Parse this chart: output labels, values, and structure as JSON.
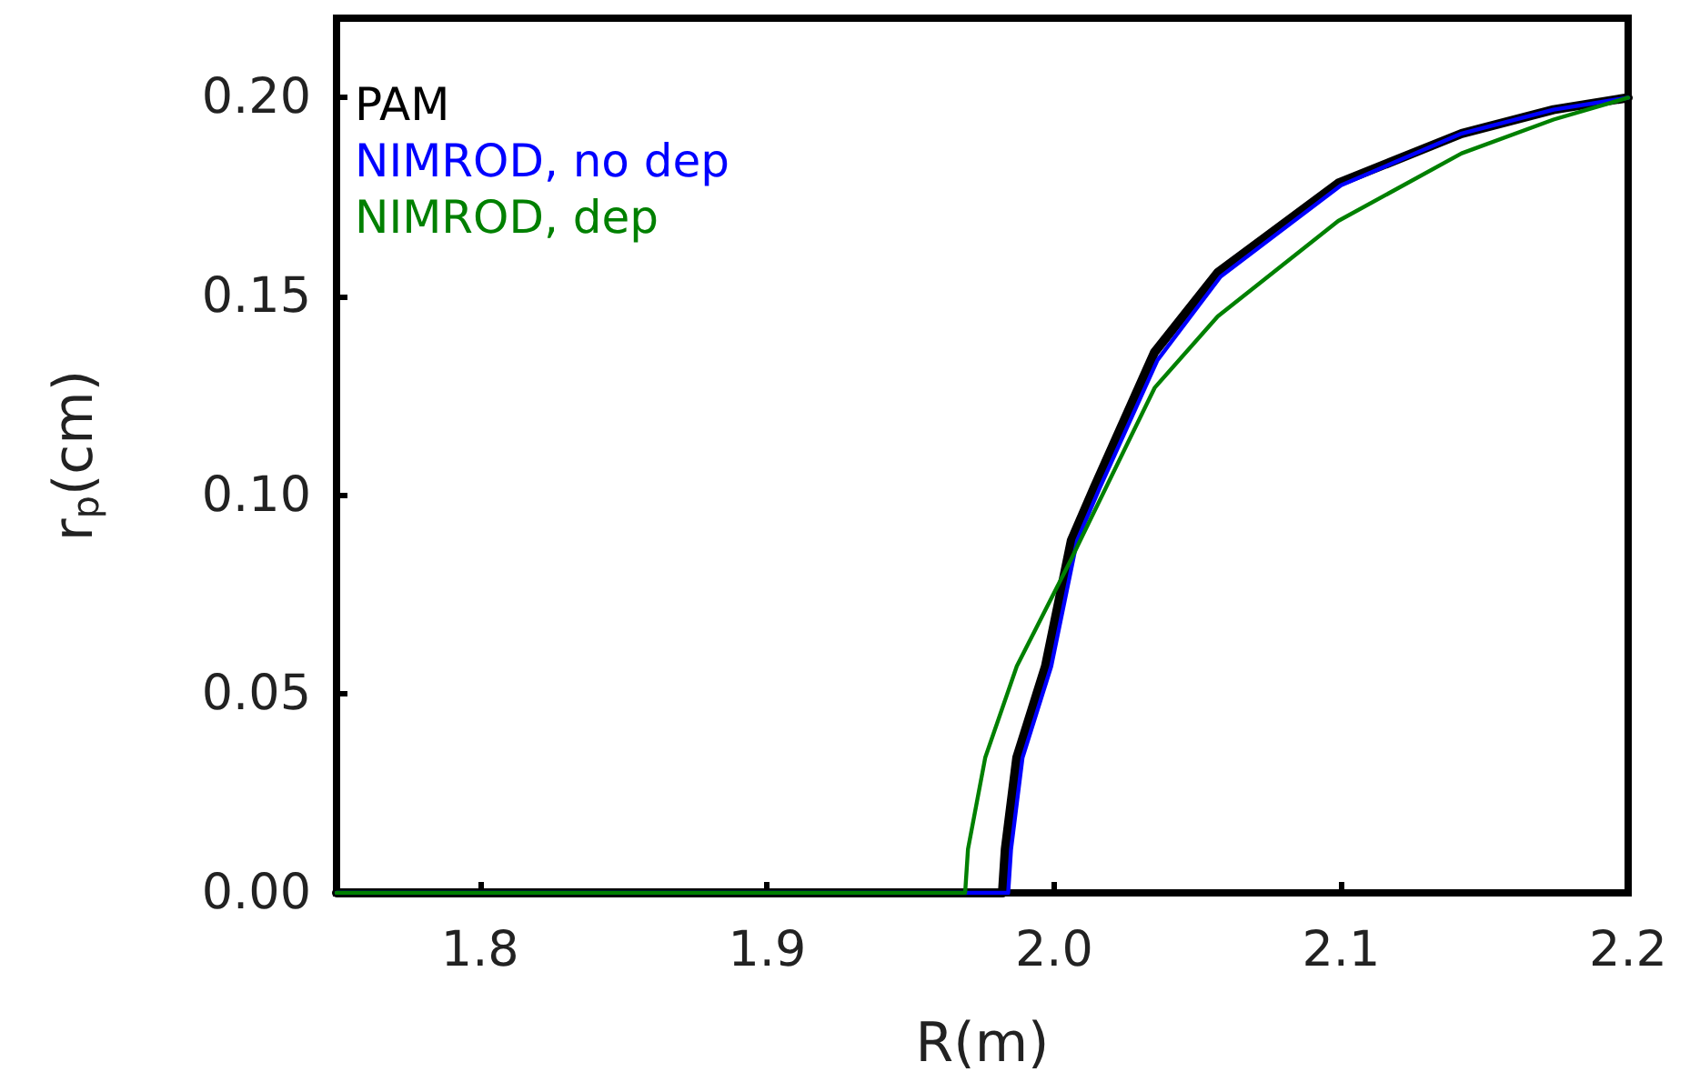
{
  "chart_data": {
    "type": "line",
    "xlabel": "R(m)",
    "ylabel": "r$_{p}$(cm)",
    "xlim": [
      1.75,
      2.2
    ],
    "ylim": [
      0,
      0.22
    ],
    "xticks": [
      1.8,
      1.9,
      {
        "value": 2,
        "label": "2.0"
      },
      2.1,
      2.2
    ],
    "yticks": [
      {
        "value": 0,
        "label": "0.00"
      },
      0.05,
      {
        "value": 0.1,
        "label": "0.10"
      },
      0.15,
      {
        "value": 0.2,
        "label": "0.20"
      }
    ],
    "grid": false,
    "legend": "top left",
    "marker": "none",
    "line_style": "solid",
    "series": [
      {
        "name": "PAM",
        "color": "#000000",
        "x": [
          1.75,
          1.982,
          1.983,
          1.987,
          1.997,
          2.006,
          2.014,
          2.035,
          2.057,
          2.099,
          2.142,
          2.174,
          2.2
        ],
        "values": [
          0,
          0,
          0.011,
          0.034,
          0.057,
          0.0886,
          0.102,
          0.136,
          0.156,
          0.1785,
          0.191,
          0.197,
          0.2
        ]
      },
      {
        "name": "NIMROD, no dep",
        "color": "#0000ff",
        "x": [
          1.75,
          1.984,
          1.985,
          1.989,
          1.999,
          2.008,
          2.016,
          2.036,
          2.058,
          2.1,
          2.142,
          2.174,
          2.2
        ],
        "values": [
          0,
          0,
          0.011,
          0.034,
          0.057,
          0.0886,
          0.102,
          0.134,
          0.155,
          0.178,
          0.191,
          0.197,
          0.2
        ]
      },
      {
        "name": "NIMROD, dep",
        "color": "#008000",
        "x": [
          1.75,
          1.969,
          1.97,
          1.976,
          1.987,
          2.006,
          2.01,
          2.035,
          2.057,
          2.099,
          2.142,
          2.174,
          2.2
        ],
        "values": [
          0,
          0,
          0.011,
          0.034,
          0.057,
          0.084,
          0.09,
          0.127,
          0.145,
          0.169,
          0.186,
          0.1945,
          0.2
        ]
      }
    ]
  }
}
